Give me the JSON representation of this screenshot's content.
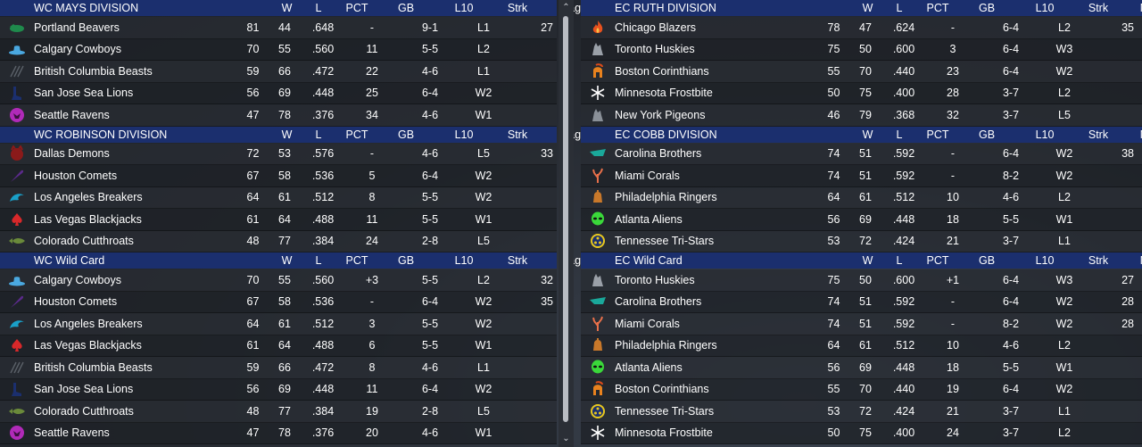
{
  "columns": {
    "w": "W",
    "l": "L",
    "pct": "PCT",
    "gb": "GB",
    "l10": "L10",
    "strk": "Strk",
    "mag": "Mag#"
  },
  "left": [
    {
      "title": "WC MAYS DIVISION",
      "teams": [
        {
          "name": "Portland Beavers",
          "w": "81",
          "l": "44",
          "pct": ".648",
          "gb": "-",
          "l10": "9-1",
          "strk": "L1",
          "mag": "27",
          "logo": "beaver-icon",
          "color": "#1f8a4c"
        },
        {
          "name": "Calgary Cowboys",
          "w": "70",
          "l": "55",
          "pct": ".560",
          "gb": "11",
          "l10": "5-5",
          "strk": "L2",
          "mag": "",
          "logo": "cowboy-hat-icon",
          "color": "#4aa8e0"
        },
        {
          "name": "British Columbia Beasts",
          "w": "59",
          "l": "66",
          "pct": ".472",
          "gb": "22",
          "l10": "4-6",
          "strk": "L1",
          "mag": "",
          "logo": "claw-marks-icon",
          "color": "#3a3f46"
        },
        {
          "name": "San Jose Sea Lions",
          "w": "56",
          "l": "69",
          "pct": ".448",
          "gb": "25",
          "l10": "6-4",
          "strk": "W2",
          "mag": "",
          "logo": "sea-lion-icon",
          "color": "#1b2f6e"
        },
        {
          "name": "Seattle Ravens",
          "w": "47",
          "l": "78",
          "pct": ".376",
          "gb": "34",
          "l10": "4-6",
          "strk": "W1",
          "mag": "",
          "logo": "raven-icon",
          "color": "#b02ab8"
        }
      ]
    },
    {
      "title": "WC ROBINSON DIVISION",
      "teams": [
        {
          "name": "Dallas Demons",
          "w": "72",
          "l": "53",
          "pct": ".576",
          "gb": "-",
          "l10": "4-6",
          "strk": "L5",
          "mag": "33",
          "logo": "demon-icon",
          "color": "#8a1a1a"
        },
        {
          "name": "Houston Comets",
          "w": "67",
          "l": "58",
          "pct": ".536",
          "gb": "5",
          "l10": "6-4",
          "strk": "W2",
          "mag": "",
          "logo": "comet-icon",
          "color": "#5a2a8a"
        },
        {
          "name": "Los Angeles Breakers",
          "w": "64",
          "l": "61",
          "pct": ".512",
          "gb": "8",
          "l10": "5-5",
          "strk": "W2",
          "mag": "",
          "logo": "wave-icon",
          "color": "#1aa0c8"
        },
        {
          "name": "Las Vegas Blackjacks",
          "w": "61",
          "l": "64",
          "pct": ".488",
          "gb": "11",
          "l10": "5-5",
          "strk": "W1",
          "mag": "",
          "logo": "spade-icon",
          "color": "#d8282a"
        },
        {
          "name": "Colorado Cutthroats",
          "w": "48",
          "l": "77",
          "pct": ".384",
          "gb": "24",
          "l10": "2-8",
          "strk": "L5",
          "mag": "",
          "logo": "fish-icon",
          "color": "#6a8a3a"
        }
      ]
    },
    {
      "title": "WC  Wild Card",
      "teams": [
        {
          "name": "Calgary Cowboys",
          "w": "70",
          "l": "55",
          "pct": ".560",
          "gb": "+3",
          "l10": "5-5",
          "strk": "L2",
          "mag": "32",
          "logo": "cowboy-hat-icon",
          "color": "#4aa8e0"
        },
        {
          "name": "Houston Comets",
          "w": "67",
          "l": "58",
          "pct": ".536",
          "gb": "-",
          "l10": "6-4",
          "strk": "W2",
          "mag": "35",
          "logo": "comet-icon",
          "color": "#5a2a8a"
        },
        {
          "name": "Los Angeles Breakers",
          "w": "64",
          "l": "61",
          "pct": ".512",
          "gb": "3",
          "l10": "5-5",
          "strk": "W2",
          "mag": "",
          "logo": "wave-icon",
          "color": "#1aa0c8"
        },
        {
          "name": "Las Vegas Blackjacks",
          "w": "61",
          "l": "64",
          "pct": ".488",
          "gb": "6",
          "l10": "5-5",
          "strk": "W1",
          "mag": "",
          "logo": "spade-icon",
          "color": "#d8282a"
        },
        {
          "name": "British Columbia Beasts",
          "w": "59",
          "l": "66",
          "pct": ".472",
          "gb": "8",
          "l10": "4-6",
          "strk": "L1",
          "mag": "",
          "logo": "claw-marks-icon",
          "color": "#3a3f46"
        },
        {
          "name": "San Jose Sea Lions",
          "w": "56",
          "l": "69",
          "pct": ".448",
          "gb": "11",
          "l10": "6-4",
          "strk": "W2",
          "mag": "",
          "logo": "sea-lion-icon",
          "color": "#1b2f6e"
        },
        {
          "name": "Colorado Cutthroats",
          "w": "48",
          "l": "77",
          "pct": ".384",
          "gb": "19",
          "l10": "2-8",
          "strk": "L5",
          "mag": "",
          "logo": "fish-icon",
          "color": "#6a8a3a"
        },
        {
          "name": "Seattle Ravens",
          "w": "47",
          "l": "78",
          "pct": ".376",
          "gb": "20",
          "l10": "4-6",
          "strk": "W1",
          "mag": "",
          "logo": "raven-icon",
          "color": "#b02ab8"
        }
      ]
    }
  ],
  "right": [
    {
      "title": "EC RUTH DIVISION",
      "teams": [
        {
          "name": "Chicago Blazers",
          "w": "78",
          "l": "47",
          "pct": ".624",
          "gb": "-",
          "l10": "6-4",
          "strk": "L2",
          "mag": "35",
          "logo": "flame-icon",
          "color": "#e8521e"
        },
        {
          "name": "Toronto Huskies",
          "w": "75",
          "l": "50",
          "pct": ".600",
          "gb": "3",
          "l10": "6-4",
          "strk": "W3",
          "mag": "",
          "logo": "husky-icon",
          "color": "#9aa0a8"
        },
        {
          "name": "Boston Corinthians",
          "w": "55",
          "l": "70",
          "pct": ".440",
          "gb": "23",
          "l10": "6-4",
          "strk": "W2",
          "mag": "",
          "logo": "helmet-icon",
          "color": "#e8821e"
        },
        {
          "name": "Minnesota Frostbite",
          "w": "50",
          "l": "75",
          "pct": ".400",
          "gb": "28",
          "l10": "3-7",
          "strk": "L2",
          "mag": "",
          "logo": "snowflake-icon",
          "color": "#ffffff"
        },
        {
          "name": "New York Pigeons",
          "w": "46",
          "l": "79",
          "pct": ".368",
          "gb": "32",
          "l10": "3-7",
          "strk": "L5",
          "mag": "",
          "logo": "pigeon-icon",
          "color": "#8a9098"
        }
      ]
    },
    {
      "title": "EC COBB DIVISION",
      "teams": [
        {
          "name": "Carolina Brothers",
          "w": "74",
          "l": "51",
          "pct": ".592",
          "gb": "-",
          "l10": "6-4",
          "strk": "W2",
          "mag": "38",
          "logo": "brothers-icon",
          "color": "#1aa89a"
        },
        {
          "name": "Miami Corals",
          "w": "74",
          "l": "51",
          "pct": ".592",
          "gb": "-",
          "l10": "8-2",
          "strk": "W2",
          "mag": "",
          "logo": "coral-icon",
          "color": "#e8704a"
        },
        {
          "name": "Philadelphia Ringers",
          "w": "64",
          "l": "61",
          "pct": ".512",
          "gb": "10",
          "l10": "4-6",
          "strk": "L2",
          "mag": "",
          "logo": "bell-icon",
          "color": "#c8782a"
        },
        {
          "name": "Atlanta Aliens",
          "w": "56",
          "l": "69",
          "pct": ".448",
          "gb": "18",
          "l10": "5-5",
          "strk": "W1",
          "mag": "",
          "logo": "alien-icon",
          "color": "#3ad83a"
        },
        {
          "name": "Tennessee Tri-Stars",
          "w": "53",
          "l": "72",
          "pct": ".424",
          "gb": "21",
          "l10": "3-7",
          "strk": "L1",
          "mag": "",
          "logo": "tri-stars-icon",
          "color": "#e8c81e"
        }
      ]
    },
    {
      "title": "EC  Wild Card",
      "teams": [
        {
          "name": "Toronto Huskies",
          "w": "75",
          "l": "50",
          "pct": ".600",
          "gb": "+1",
          "l10": "6-4",
          "strk": "W3",
          "mag": "27",
          "logo": "husky-icon",
          "color": "#9aa0a8"
        },
        {
          "name": "Carolina Brothers",
          "w": "74",
          "l": "51",
          "pct": ".592",
          "gb": "-",
          "l10": "6-4",
          "strk": "W2",
          "mag": "28",
          "logo": "brothers-icon",
          "color": "#1aa89a"
        },
        {
          "name": "Miami Corals",
          "w": "74",
          "l": "51",
          "pct": ".592",
          "gb": "-",
          "l10": "8-2",
          "strk": "W2",
          "mag": "28",
          "logo": "coral-icon",
          "color": "#e8704a"
        },
        {
          "name": "Philadelphia Ringers",
          "w": "64",
          "l": "61",
          "pct": ".512",
          "gb": "10",
          "l10": "4-6",
          "strk": "L2",
          "mag": "",
          "logo": "bell-icon",
          "color": "#c8782a"
        },
        {
          "name": "Atlanta Aliens",
          "w": "56",
          "l": "69",
          "pct": ".448",
          "gb": "18",
          "l10": "5-5",
          "strk": "W1",
          "mag": "",
          "logo": "alien-icon",
          "color": "#3ad83a"
        },
        {
          "name": "Boston Corinthians",
          "w": "55",
          "l": "70",
          "pct": ".440",
          "gb": "19",
          "l10": "6-4",
          "strk": "W2",
          "mag": "",
          "logo": "helmet-icon",
          "color": "#e8821e"
        },
        {
          "name": "Tennessee Tri-Stars",
          "w": "53",
          "l": "72",
          "pct": ".424",
          "gb": "21",
          "l10": "3-7",
          "strk": "L1",
          "mag": "",
          "logo": "tri-stars-icon",
          "color": "#e8c81e"
        },
        {
          "name": "Minnesota Frostbite",
          "w": "50",
          "l": "75",
          "pct": ".400",
          "gb": "24",
          "l10": "3-7",
          "strk": "L2",
          "mag": "",
          "logo": "snowflake-icon",
          "color": "#ffffff"
        }
      ]
    }
  ]
}
